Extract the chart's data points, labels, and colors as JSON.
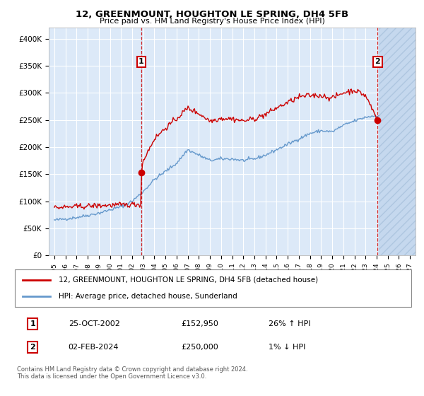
{
  "title": "12, GREENMOUNT, HOUGHTON LE SPRING, DH4 5FB",
  "subtitle": "Price paid vs. HM Land Registry's House Price Index (HPI)",
  "red_label": "12, GREENMOUNT, HOUGHTON LE SPRING, DH4 5FB (detached house)",
  "blue_label": "HPI: Average price, detached house, Sunderland",
  "transaction1_date": "25-OCT-2002",
  "transaction1_price": "£152,950",
  "transaction1_hpi": "26% ↑ HPI",
  "transaction2_date": "02-FEB-2024",
  "transaction2_price": "£250,000",
  "transaction2_hpi": "1% ↓ HPI",
  "copyright": "Contains HM Land Registry data © Crown copyright and database right 2024.\nThis data is licensed under the Open Government Licence v3.0.",
  "ylim": [
    0,
    420000
  ],
  "yticks": [
    0,
    50000,
    100000,
    150000,
    200000,
    250000,
    300000,
    350000,
    400000
  ],
  "ytick_labels": [
    "£0",
    "£50K",
    "£100K",
    "£150K",
    "£200K",
    "£250K",
    "£300K",
    "£350K",
    "£400K"
  ],
  "background_color": "#dce9f8",
  "grid_color": "#ffffff",
  "red_color": "#cc0000",
  "blue_color": "#6699cc",
  "future_start_year": 2024.2,
  "xmin": 1994.5,
  "xmax": 2027.5,
  "t1_x": 2002.82,
  "t1_y": 152950,
  "t2_x": 2024.09,
  "t2_y": 250000
}
